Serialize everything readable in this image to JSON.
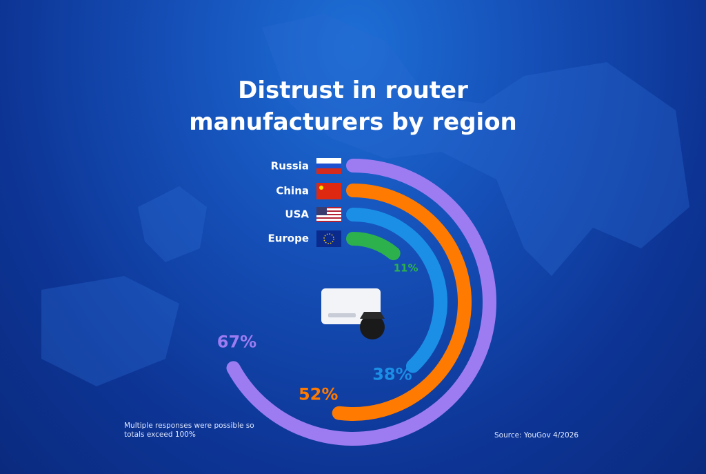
{
  "chart_data": {
    "type": "radial-bar",
    "title": "Distrust in router manufacturers by region",
    "categories": [
      "Russia",
      "China",
      "USA",
      "Europe"
    ],
    "values": [
      67,
      52,
      38,
      11
    ],
    "value_labels": [
      "67%",
      "52%",
      "38%",
      "11%"
    ],
    "colors": [
      "#9d7cf2",
      "#ff7a00",
      "#1b8fe6",
      "#2db14d"
    ],
    "ylim": [
      0,
      100
    ],
    "note": "Multiple responses were possible so totals exceed 100%",
    "source": "Source: YouGov 4/2026"
  }
}
